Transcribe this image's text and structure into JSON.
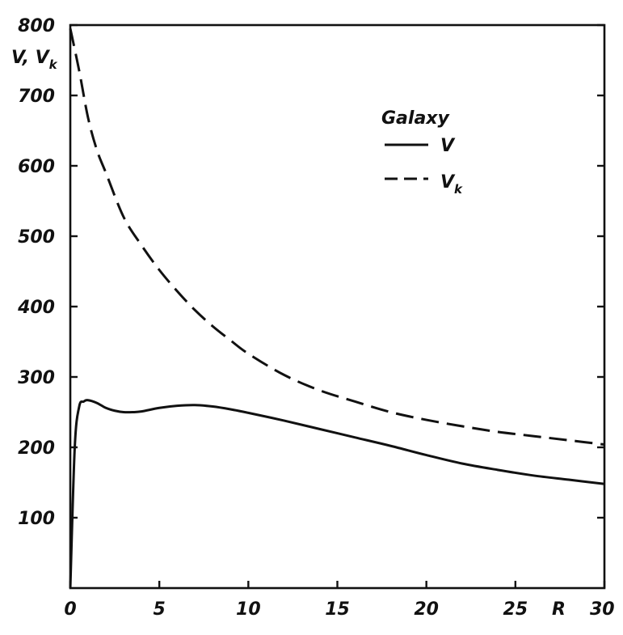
{
  "chart_data": {
    "type": "line",
    "title": "",
    "xlabel": "R",
    "ylabel_main": "V, V",
    "ylabel_sub": "k",
    "xlim": [
      0,
      30
    ],
    "ylim": [
      0,
      800
    ],
    "x_ticks": [
      "0",
      "5",
      "10",
      "15",
      "20",
      "25",
      "30"
    ],
    "y_ticks": [
      "100",
      "200",
      "300",
      "400",
      "500",
      "600",
      "700",
      "800"
    ],
    "grid": false,
    "legend_position": "top-right",
    "legend_title": "Galaxy",
    "series": [
      {
        "name": "V",
        "label_main": "V",
        "label_sub": "",
        "style": "solid",
        "x": [
          0,
          0.25,
          0.5,
          0.75,
          1.0,
          1.5,
          2,
          2.5,
          3,
          3.5,
          4,
          5,
          6,
          7,
          8,
          9,
          10,
          12,
          14,
          16,
          18,
          20,
          22,
          24,
          26,
          28,
          30
        ],
        "y": [
          0,
          200,
          258,
          265,
          267,
          263,
          256,
          252,
          250,
          250,
          251,
          256,
          259,
          260,
          258,
          254,
          249,
          238,
          226,
          214,
          202,
          189,
          177,
          168,
          160,
          154,
          148
        ]
      },
      {
        "name": "V_k",
        "label_main": "V",
        "label_sub": "k",
        "style": "dashed",
        "x": [
          0,
          0.5,
          1,
          1.5,
          2,
          3,
          4,
          5,
          6,
          7,
          8,
          9,
          10,
          12,
          14,
          16,
          18,
          20,
          22,
          24,
          26,
          28,
          30
        ],
        "y": [
          795,
          735,
          668,
          622,
          590,
          527,
          487,
          452,
          422,
          395,
          372,
          352,
          333,
          303,
          281,
          265,
          250,
          239,
          230,
          222,
          216,
          210,
          204
        ]
      }
    ]
  }
}
